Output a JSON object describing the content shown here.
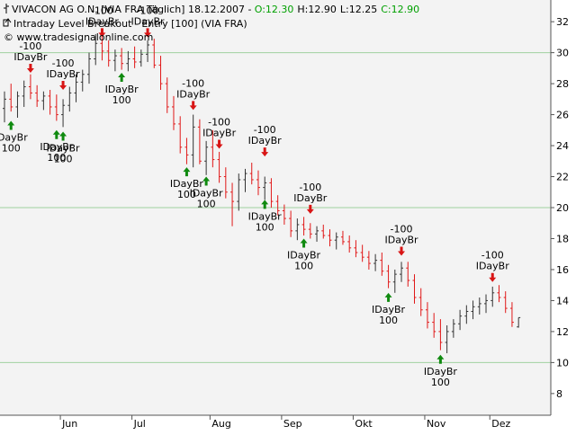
{
  "header": {
    "symbol_line": {
      "name": "VIVACON AG O.N. [VIA FRA  Täglich] 18.12.2007 -",
      "open": "O:12.30",
      "high": "H:12.90",
      "low": "L:12.25",
      "close": "C:12.90"
    },
    "indicator_line": "Intraday Level Breakout - Entry [100] (VIA FRA)",
    "copyright_line": "© www.tradesignalonline.com"
  },
  "colors": {
    "background": "#f3f3f3",
    "up_bar": "#333333",
    "down_bar": "#e01818",
    "grid": "#9fd19f",
    "buy_arrow": "#0f8a0f",
    "sell_arrow": "#d81515",
    "open_value": "#00a000",
    "close_value": "#00a000"
  },
  "chart_data": {
    "type": "candlestick",
    "x_labels": [
      "Jun",
      "Jul",
      "Aug",
      "Sep",
      "Okt",
      "Nov",
      "Dez"
    ],
    "y_ticks": [
      8,
      10,
      12,
      14,
      16,
      18,
      20,
      22,
      24,
      26,
      28,
      30,
      32
    ],
    "ylim": [
      6.6,
      33.4
    ],
    "grid_lines": [
      10,
      20,
      30
    ],
    "series": [
      {
        "name": "VIVACON AG O.N.",
        "values": [
          [
            0,
            26.4,
            27.5,
            25.5,
            27.0
          ],
          [
            1,
            27.0,
            28.0,
            26.2,
            26.5
          ],
          [
            2,
            26.5,
            27.5,
            25.8,
            27.2
          ],
          [
            3,
            27.2,
            28.2,
            26.5,
            27.8
          ],
          [
            4,
            27.8,
            28.6,
            27.0,
            27.4
          ],
          [
            5,
            27.4,
            27.9,
            26.5,
            26.9
          ],
          [
            6,
            26.9,
            27.5,
            26.3,
            27.2
          ],
          [
            7,
            27.2,
            27.6,
            26.0,
            26.5
          ],
          [
            8,
            26.5,
            27.3,
            25.6,
            26.0
          ],
          [
            9,
            26.0,
            27.0,
            25.2,
            26.6
          ],
          [
            10,
            26.6,
            27.8,
            26.2,
            27.4
          ],
          [
            11,
            27.4,
            28.6,
            26.8,
            28.1
          ],
          [
            12,
            28.1,
            28.9,
            27.5,
            28.6
          ],
          [
            13,
            28.6,
            30.0,
            28.0,
            29.6
          ],
          [
            14,
            29.6,
            31.2,
            29.2,
            30.6
          ],
          [
            15,
            30.6,
            31.4,
            29.5,
            30.1
          ],
          [
            16,
            30.1,
            30.8,
            29.1,
            29.5
          ],
          [
            17,
            29.5,
            30.2,
            28.8,
            29.8
          ],
          [
            18,
            29.8,
            30.3,
            28.9,
            29.3
          ],
          [
            19,
            29.3,
            30.1,
            28.8,
            29.6
          ],
          [
            20,
            29.6,
            30.4,
            29.0,
            29.4
          ],
          [
            21,
            29.4,
            30.2,
            29.1,
            29.9
          ],
          [
            22,
            29.9,
            30.8,
            29.4,
            30.5
          ],
          [
            23,
            30.5,
            30.9,
            29.0,
            29.2
          ],
          [
            24,
            29.2,
            29.8,
            27.6,
            28.0
          ],
          [
            25,
            28.0,
            28.4,
            26.1,
            26.5
          ],
          [
            26,
            26.5,
            27.2,
            25.0,
            25.4
          ],
          [
            27,
            25.4,
            25.9,
            23.5,
            23.9
          ],
          [
            28,
            23.9,
            24.5,
            22.8,
            23.4
          ],
          [
            29,
            23.4,
            26.0,
            22.6,
            25.2
          ],
          [
            30,
            25.2,
            25.7,
            22.8,
            23.0
          ],
          [
            31,
            23.0,
            24.3,
            22.1,
            23.9
          ],
          [
            32,
            23.9,
            25.0,
            22.6,
            23.1
          ],
          [
            33,
            23.1,
            23.6,
            21.6,
            22.0
          ],
          [
            34,
            22.0,
            22.6,
            20.6,
            21.0
          ],
          [
            35,
            21.0,
            21.6,
            18.8,
            20.4
          ],
          [
            36,
            20.4,
            22.2,
            19.8,
            21.8
          ],
          [
            37,
            21.8,
            22.5,
            21.0,
            22.2
          ],
          [
            38,
            22.2,
            22.9,
            21.5,
            21.8
          ],
          [
            39,
            21.8,
            22.4,
            20.8,
            21.3
          ],
          [
            40,
            21.3,
            22.0,
            20.5,
            21.6
          ],
          [
            41,
            21.6,
            21.9,
            20.0,
            20.4
          ],
          [
            42,
            20.4,
            20.8,
            19.5,
            19.8
          ],
          [
            43,
            19.8,
            20.2,
            18.9,
            19.3
          ],
          [
            44,
            19.3,
            19.8,
            18.1,
            18.5
          ],
          [
            45,
            18.5,
            19.3,
            17.9,
            18.9
          ],
          [
            46,
            18.9,
            19.4,
            18.2,
            18.6
          ],
          [
            47,
            18.6,
            19.0,
            18.0,
            18.3
          ],
          [
            48,
            18.3,
            18.8,
            17.8,
            18.5
          ],
          [
            49,
            18.5,
            18.9,
            18.0,
            18.2
          ],
          [
            50,
            18.2,
            18.6,
            17.5,
            17.9
          ],
          [
            51,
            17.9,
            18.4,
            17.3,
            18.1
          ],
          [
            52,
            18.1,
            18.5,
            17.6,
            17.8
          ],
          [
            53,
            17.8,
            18.2,
            17.1,
            17.4
          ],
          [
            54,
            17.4,
            17.9,
            16.8,
            17.1
          ],
          [
            55,
            17.1,
            17.6,
            16.5,
            16.8
          ],
          [
            56,
            16.8,
            17.2,
            16.0,
            16.4
          ],
          [
            57,
            16.4,
            17.0,
            15.9,
            16.6
          ],
          [
            58,
            16.6,
            17.1,
            15.6,
            15.9
          ],
          [
            59,
            15.9,
            16.3,
            14.8,
            15.2
          ],
          [
            60,
            15.2,
            16.0,
            14.5,
            15.7
          ],
          [
            61,
            15.7,
            16.5,
            15.2,
            16.1
          ],
          [
            62,
            16.1,
            16.5,
            14.9,
            15.3
          ],
          [
            63,
            15.3,
            15.7,
            13.8,
            14.2
          ],
          [
            64,
            14.2,
            14.8,
            13.0,
            13.4
          ],
          [
            65,
            13.4,
            13.9,
            12.2,
            12.6
          ],
          [
            66,
            12.6,
            13.2,
            11.6,
            12.0
          ],
          [
            67,
            12.0,
            12.8,
            10.8,
            11.3
          ],
          [
            68,
            11.3,
            12.4,
            10.6,
            12.0
          ],
          [
            69,
            12.0,
            12.8,
            11.6,
            12.5
          ],
          [
            70,
            12.5,
            13.4,
            12.1,
            13.0
          ],
          [
            71,
            13.0,
            13.7,
            12.5,
            13.3
          ],
          [
            72,
            13.3,
            14.0,
            12.8,
            13.6
          ],
          [
            73,
            13.6,
            14.2,
            13.1,
            13.8
          ],
          [
            74,
            13.8,
            14.4,
            13.2,
            14.0
          ],
          [
            75,
            14.0,
            14.9,
            13.6,
            14.5
          ],
          [
            76,
            14.5,
            15.0,
            13.9,
            14.2
          ],
          [
            77,
            14.2,
            14.6,
            13.2,
            13.5
          ],
          [
            78,
            13.5,
            13.9,
            12.3,
            12.6
          ],
          [
            79,
            12.3,
            12.9,
            12.25,
            12.9
          ]
        ]
      }
    ],
    "signals": [
      {
        "type": "buy",
        "bar": 1,
        "price": 25.6,
        "label": "IDayBr",
        "value": "100"
      },
      {
        "type": "sell",
        "bar": 4,
        "price": 28.7,
        "label": "IDayBr",
        "value": "-100"
      },
      {
        "type": "buy",
        "bar": 8,
        "price": 25.0,
        "label": "IDayBr",
        "value": "100"
      },
      {
        "type": "buy",
        "bar": 9,
        "price": 24.9,
        "label": "IDayBr",
        "value": "100"
      },
      {
        "type": "sell",
        "bar": 9,
        "price": 27.6,
        "label": "IDayBr",
        "value": "-100"
      },
      {
        "type": "sell",
        "bar": 15,
        "price": 31.0,
        "label": "IDayBr",
        "value": "-100"
      },
      {
        "type": "buy",
        "bar": 18,
        "price": 28.7,
        "label": "IDayBr",
        "value": "100"
      },
      {
        "type": "sell",
        "bar": 22,
        "price": 31.0,
        "label": "IDayBr",
        "value": "-100"
      },
      {
        "type": "buy",
        "bar": 28,
        "price": 22.6,
        "label": "IDayBr",
        "value": "100"
      },
      {
        "type": "sell",
        "bar": 29,
        "price": 26.3,
        "label": "IDayBr",
        "value": "-100"
      },
      {
        "type": "buy",
        "bar": 31,
        "price": 22.0,
        "label": "IDayBr",
        "value": "100"
      },
      {
        "type": "sell",
        "bar": 33,
        "price": 23.8,
        "label": "IDayBr",
        "value": "-100"
      },
      {
        "type": "buy",
        "bar": 40,
        "price": 20.5,
        "label": "IDayBr",
        "value": "100"
      },
      {
        "type": "sell",
        "bar": 40,
        "price": 23.3,
        "label": "IDayBr",
        "value": "-100"
      },
      {
        "type": "buy",
        "bar": 46,
        "price": 18.0,
        "label": "IDayBr",
        "value": "100"
      },
      {
        "type": "sell",
        "bar": 47,
        "price": 19.6,
        "label": "IDayBr",
        "value": "-100"
      },
      {
        "type": "buy",
        "bar": 59,
        "price": 14.5,
        "label": "IDayBr",
        "value": "100"
      },
      {
        "type": "sell",
        "bar": 61,
        "price": 16.9,
        "label": "IDayBr",
        "value": "-100"
      },
      {
        "type": "buy",
        "bar": 67,
        "price": 10.5,
        "label": "IDayBr",
        "value": "100"
      },
      {
        "type": "sell",
        "bar": 75,
        "price": 15.2,
        "label": "IDayBr",
        "value": "-100"
      }
    ]
  }
}
